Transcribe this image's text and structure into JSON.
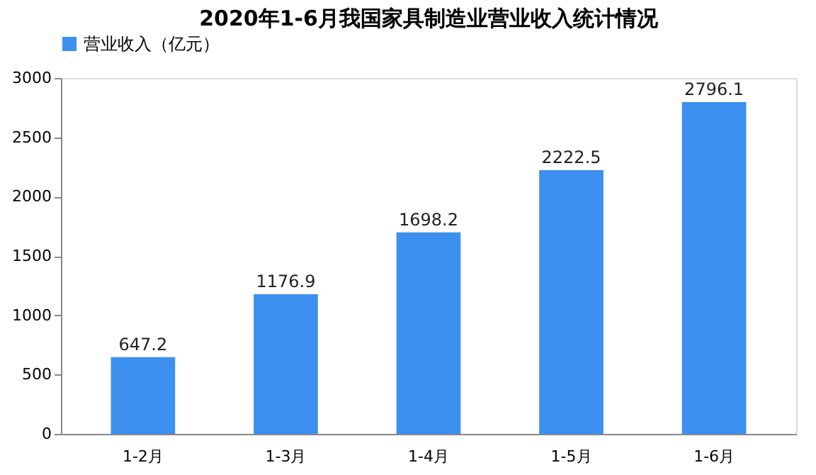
{
  "chart_data": {
    "type": "bar",
    "title": "2020年1-6月我国家具制造业营业收入统计情况",
    "categories": [
      "1-2月",
      "1-3月",
      "1-4月",
      "1-5月",
      "1-6月"
    ],
    "series": [
      {
        "name": "营业收入（亿元）",
        "color": "#3d8ff0",
        "values": [
          647.2,
          1176.9,
          1698.2,
          2222.5,
          2796.1
        ]
      }
    ],
    "ylim": [
      0,
      3000
    ],
    "yticks": [
      0,
      500,
      1000,
      1500,
      2000,
      2500,
      3000
    ],
    "data_labels": true,
    "legend": "top",
    "grid": false
  }
}
